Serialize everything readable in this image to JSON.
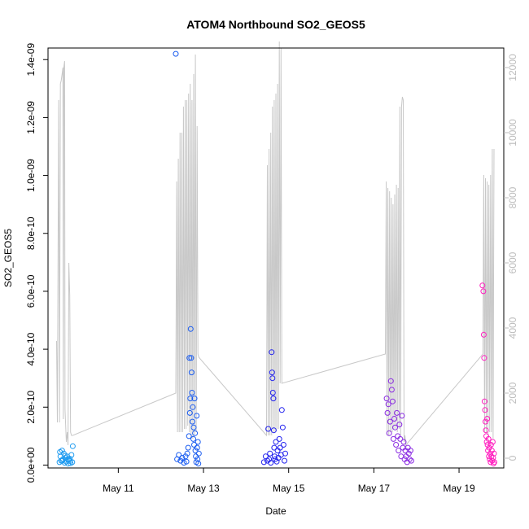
{
  "chart_data": {
    "type": "scatter",
    "title": "ATOM4 Northbound SO2_GEOS5",
    "xlabel": "Date",
    "ylabel": "SO2_GEOS5",
    "x_tick_labels": [
      "May 11",
      "May 13",
      "May 15",
      "May 17",
      "May 19"
    ],
    "x_tick_values_days": [
      11,
      13,
      15,
      17,
      19
    ],
    "xlim_days": [
      9.35,
      20.05
    ],
    "ylim": [
      -1e-11,
      1.44e-09
    ],
    "y_tick_labels": [
      "0.0e+00",
      "2.0e-10",
      "4.0e-10",
      "6.0e-10",
      "8.0e-10",
      "1.0e-09",
      "1.2e-09",
      "1.4e-09"
    ],
    "y_tick_values": [
      0,
      2e-10,
      4e-10,
      6e-10,
      8e-10,
      1e-09,
      1.2e-09,
      1.4e-09
    ],
    "y2_tick_labels": [
      "0",
      "2000",
      "4000",
      "6000",
      "8000",
      "10000",
      "12000"
    ],
    "y2_tick_values": [
      0,
      2000,
      4000,
      6000,
      8000,
      10000,
      12000
    ],
    "y2lim": [
      -300,
      12600
    ],
    "grid": false,
    "altitude_line_color": "#c8c8c8",
    "series": [
      {
        "color": "#1e9bf0",
        "points": [
          [
            9.62,
            1e-11
          ],
          [
            9.64,
            3e-11
          ],
          [
            9.66,
            1.5e-11
          ],
          [
            9.68,
            5e-11
          ],
          [
            9.7,
            2e-11
          ],
          [
            9.72,
            4e-11
          ],
          [
            9.74,
            8e-12
          ],
          [
            9.76,
            2.5e-11
          ],
          [
            9.78,
            1.2e-11
          ],
          [
            9.8,
            3e-11
          ],
          [
            9.82,
            5e-12
          ],
          [
            9.84,
            1.8e-11
          ],
          [
            9.86,
            2.2e-11
          ],
          [
            9.88,
            6e-12
          ],
          [
            9.9,
            3.5e-11
          ],
          [
            9.92,
            1e-11
          ],
          [
            9.93,
            6.5e-11
          ],
          [
            9.63,
            4.5e-11
          ],
          [
            9.69,
            1.5e-11
          ],
          [
            9.75,
            3.2e-11
          ],
          [
            9.81,
            2e-11
          ],
          [
            9.87,
            1.4e-11
          ]
        ]
      },
      {
        "color": "#1a5cf0",
        "points": [
          [
            12.35,
            1.42e-09
          ],
          [
            12.38,
            2e-11
          ],
          [
            12.42,
            3.5e-11
          ],
          [
            12.46,
            1.5e-11
          ],
          [
            12.5,
            2.5e-11
          ],
          [
            12.54,
            8e-12
          ],
          [
            12.58,
            3e-11
          ],
          [
            12.6,
            1.2e-11
          ],
          [
            12.62,
            4e-11
          ],
          [
            12.64,
            6e-11
          ],
          [
            12.66,
            1e-10
          ],
          [
            12.67,
            3.7e-10
          ],
          [
            12.68,
            1.8e-10
          ],
          [
            12.69,
            2.3e-10
          ],
          [
            12.7,
            4.7e-10
          ],
          [
            12.71,
            3.7e-10
          ],
          [
            12.72,
            3.2e-10
          ],
          [
            12.73,
            2.5e-10
          ],
          [
            12.74,
            1.5e-10
          ],
          [
            12.75,
            2e-10
          ],
          [
            12.76,
            9e-11
          ],
          [
            12.77,
            1.3e-10
          ],
          [
            12.78,
            7e-11
          ],
          [
            12.79,
            2.3e-10
          ],
          [
            12.8,
            1.1e-10
          ],
          [
            12.81,
            5e-11
          ],
          [
            12.82,
            3e-11
          ],
          [
            12.83,
            1e-11
          ],
          [
            12.84,
            1.7e-10
          ],
          [
            12.85,
            6e-11
          ],
          [
            12.86,
            2e-11
          ],
          [
            12.87,
            8e-11
          ],
          [
            12.88,
            5e-12
          ],
          [
            12.89,
            4e-11
          ]
        ]
      },
      {
        "color": "#2222ee",
        "points": [
          [
            14.42,
            1e-11
          ],
          [
            14.46,
            3e-11
          ],
          [
            14.5,
            1.5e-11
          ],
          [
            14.52,
            1.25e-10
          ],
          [
            14.54,
            2e-11
          ],
          [
            14.56,
            4e-11
          ],
          [
            14.58,
            8e-12
          ],
          [
            14.6,
            3.9e-10
          ],
          [
            14.61,
            3.2e-10
          ],
          [
            14.62,
            3e-10
          ],
          [
            14.63,
            2.5e-10
          ],
          [
            14.64,
            2.3e-10
          ],
          [
            14.65,
            1.2e-10
          ],
          [
            14.66,
            6e-11
          ],
          [
            14.67,
            3e-11
          ],
          [
            14.68,
            2e-11
          ],
          [
            14.7,
            8e-11
          ],
          [
            14.72,
            1.2e-11
          ],
          [
            14.74,
            5e-11
          ],
          [
            14.76,
            2.5e-11
          ],
          [
            14.78,
            9e-11
          ],
          [
            14.8,
            6e-11
          ],
          [
            14.82,
            3.5e-11
          ],
          [
            14.84,
            1.9e-10
          ],
          [
            14.86,
            1.3e-10
          ],
          [
            14.88,
            7e-11
          ],
          [
            14.9,
            1.5e-11
          ],
          [
            14.92,
            4e-11
          ]
        ]
      },
      {
        "color": "#8a2be2",
        "points": [
          [
            17.3,
            2.3e-10
          ],
          [
            17.32,
            1.8e-10
          ],
          [
            17.34,
            2.1e-10
          ],
          [
            17.36,
            1.1e-10
          ],
          [
            17.38,
            1.5e-10
          ],
          [
            17.4,
            2.9e-10
          ],
          [
            17.42,
            2.6e-10
          ],
          [
            17.44,
            2.2e-10
          ],
          [
            17.46,
            9e-11
          ],
          [
            17.48,
            1.6e-10
          ],
          [
            17.5,
            1.3e-10
          ],
          [
            17.52,
            7e-11
          ],
          [
            17.54,
            1.8e-10
          ],
          [
            17.56,
            1e-10
          ],
          [
            17.58,
            5e-11
          ],
          [
            17.6,
            1.4e-10
          ],
          [
            17.62,
            9e-11
          ],
          [
            17.64,
            3e-11
          ],
          [
            17.66,
            1.7e-10
          ],
          [
            17.68,
            6e-11
          ],
          [
            17.7,
            8e-11
          ],
          [
            17.72,
            2e-11
          ],
          [
            17.74,
            5e-11
          ],
          [
            17.76,
            3e-11
          ],
          [
            17.78,
            1e-11
          ],
          [
            17.8,
            6e-11
          ],
          [
            17.82,
            4e-11
          ],
          [
            17.84,
            2e-11
          ],
          [
            17.86,
            5e-11
          ],
          [
            17.88,
            1.5e-11
          ]
        ]
      },
      {
        "color": "#ff1fbf",
        "points": [
          [
            19.55,
            6.2e-10
          ],
          [
            19.57,
            6e-10
          ],
          [
            19.58,
            4.5e-10
          ],
          [
            19.59,
            3.7e-10
          ],
          [
            19.6,
            2.2e-10
          ],
          [
            19.61,
            1.9e-10
          ],
          [
            19.62,
            1.5e-10
          ],
          [
            19.63,
            1.2e-10
          ],
          [
            19.64,
            1e-10
          ],
          [
            19.65,
            8e-11
          ],
          [
            19.66,
            1.6e-10
          ],
          [
            19.67,
            7e-11
          ],
          [
            19.68,
            5e-11
          ],
          [
            19.69,
            9e-11
          ],
          [
            19.7,
            3e-11
          ],
          [
            19.71,
            6e-11
          ],
          [
            19.72,
            2e-11
          ],
          [
            19.73,
            4e-11
          ],
          [
            19.74,
            1e-11
          ],
          [
            19.75,
            7e-11
          ],
          [
            19.76,
            3e-11
          ],
          [
            19.77,
            5e-11
          ],
          [
            19.78,
            1.5e-11
          ],
          [
            19.79,
            8e-11
          ],
          [
            19.8,
            2.5e-11
          ],
          [
            19.81,
            5e-12
          ],
          [
            19.82,
            4e-11
          ],
          [
            19.83,
            1e-11
          ]
        ]
      }
    ],
    "altitude_points": [
      [
        9.55,
        3600
      ],
      [
        9.57,
        1100
      ],
      [
        9.6,
        11000
      ],
      [
        9.62,
        1100
      ],
      [
        9.64,
        11500
      ],
      [
        9.66,
        11600
      ],
      [
        9.68,
        11800
      ],
      [
        9.7,
        12000
      ],
      [
        9.71,
        1200
      ],
      [
        9.72,
        12000
      ],
      [
        9.74,
        12200
      ],
      [
        9.75,
        1500
      ],
      [
        9.78,
        500
      ],
      [
        9.8,
        800
      ],
      [
        9.82,
        400
      ],
      [
        9.84,
        6000
      ],
      [
        9.86,
        5000
      ],
      [
        9.88,
        800
      ],
      [
        9.9,
        700
      ],
      [
        9.93,
        700
      ],
      [
        12.35,
        2000
      ],
      [
        12.37,
        8500
      ],
      [
        12.39,
        800
      ],
      [
        12.41,
        9200
      ],
      [
        12.43,
        800
      ],
      [
        12.45,
        10000
      ],
      [
        12.47,
        800
      ],
      [
        12.49,
        10000
      ],
      [
        12.51,
        800
      ],
      [
        12.53,
        10800
      ],
      [
        12.55,
        900
      ],
      [
        12.57,
        11000
      ],
      [
        12.59,
        900
      ],
      [
        12.61,
        11000
      ],
      [
        12.63,
        1000
      ],
      [
        12.65,
        11200
      ],
      [
        12.67,
        800
      ],
      [
        12.69,
        11500
      ],
      [
        12.71,
        600
      ],
      [
        12.73,
        11000
      ],
      [
        12.75,
        600
      ],
      [
        12.77,
        11800
      ],
      [
        12.79,
        700
      ],
      [
        12.81,
        12400
      ],
      [
        12.83,
        800
      ],
      [
        12.85,
        10200
      ],
      [
        12.87,
        3200
      ],
      [
        12.89,
        3100
      ],
      [
        14.48,
        700
      ],
      [
        14.5,
        9000
      ],
      [
        14.52,
        700
      ],
      [
        14.54,
        9500
      ],
      [
        14.56,
        700
      ],
      [
        14.58,
        10000
      ],
      [
        14.6,
        700
      ],
      [
        14.62,
        10800
      ],
      [
        14.64,
        800
      ],
      [
        14.66,
        11000
      ],
      [
        14.68,
        800
      ],
      [
        14.7,
        11200
      ],
      [
        14.72,
        900
      ],
      [
        14.74,
        11500
      ],
      [
        14.76,
        900
      ],
      [
        14.78,
        12800
      ],
      [
        14.8,
        2300
      ],
      [
        14.82,
        12600
      ],
      [
        14.84,
        2300
      ],
      [
        17.27,
        3200
      ],
      [
        17.29,
        8500
      ],
      [
        17.31,
        700
      ],
      [
        17.33,
        8300
      ],
      [
        17.35,
        700
      ],
      [
        17.37,
        8200
      ],
      [
        17.39,
        800
      ],
      [
        17.41,
        8000
      ],
      [
        17.43,
        800
      ],
      [
        17.45,
        7800
      ],
      [
        17.47,
        900
      ],
      [
        17.49,
        8100
      ],
      [
        17.51,
        900
      ],
      [
        17.53,
        8400
      ],
      [
        17.55,
        800
      ],
      [
        17.57,
        8300
      ],
      [
        17.59,
        900
      ],
      [
        17.61,
        10800
      ],
      [
        17.63,
        700
      ],
      [
        17.65,
        10800
      ],
      [
        17.67,
        11100
      ],
      [
        17.69,
        11000
      ],
      [
        17.71,
        500
      ],
      [
        17.73,
        700
      ],
      [
        17.75,
        400
      ],
      [
        19.56,
        3200
      ],
      [
        19.58,
        8700
      ],
      [
        19.6,
        800
      ],
      [
        19.62,
        8600
      ],
      [
        19.64,
        800
      ],
      [
        19.66,
        8500
      ],
      [
        19.68,
        700
      ],
      [
        19.7,
        8400
      ],
      [
        19.72,
        800
      ],
      [
        19.74,
        8700
      ],
      [
        19.76,
        800
      ],
      [
        19.78,
        9500
      ],
      [
        19.8,
        600
      ],
      [
        19.82,
        9500
      ]
    ]
  }
}
